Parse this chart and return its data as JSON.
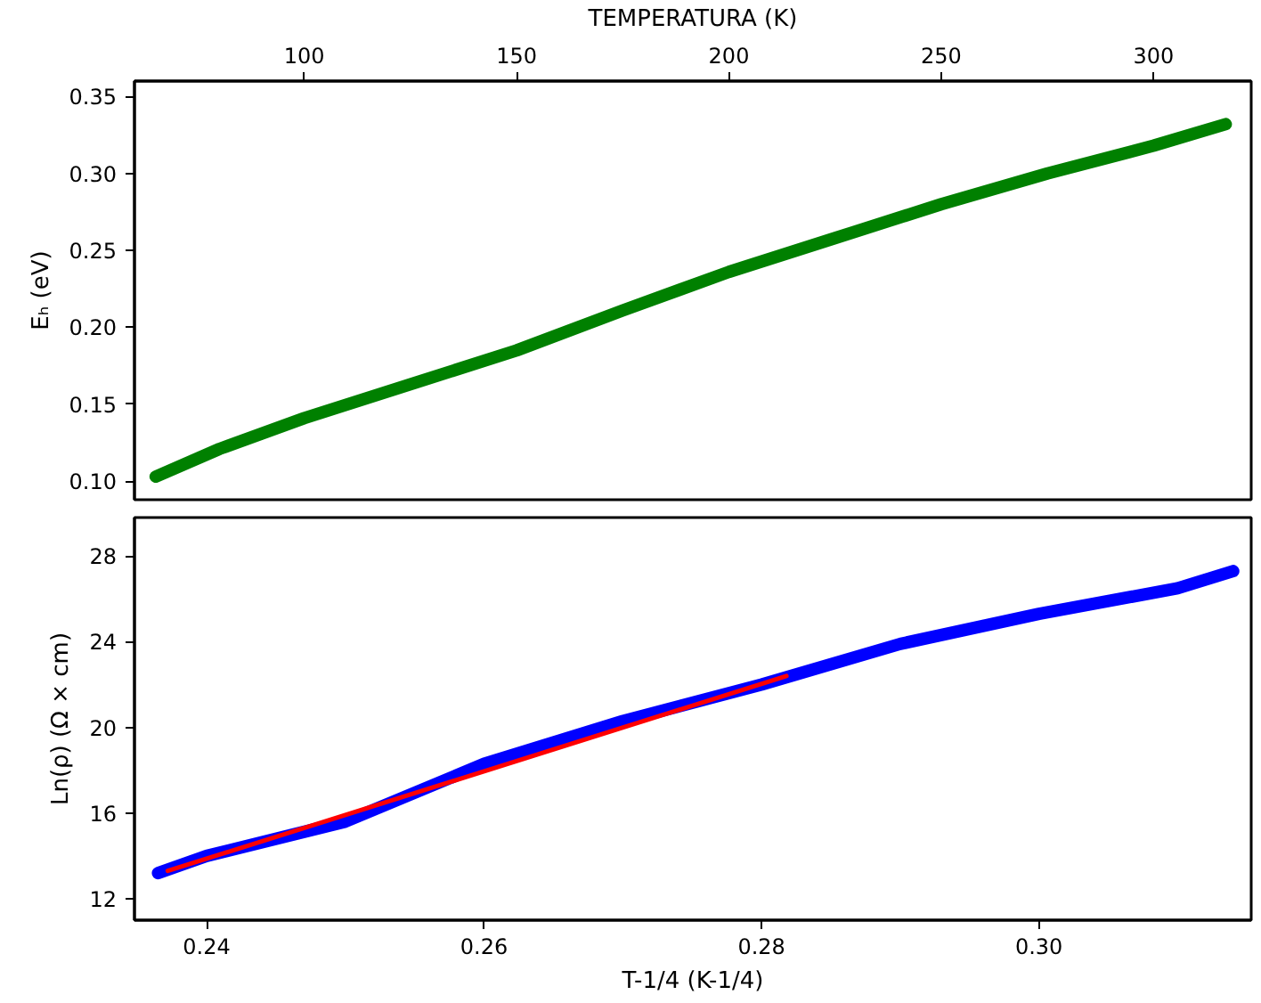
{
  "chart_data": [
    {
      "type": "line",
      "ylabel": "Eₕ (eV)",
      "xlabel": "TEMPERATURA (K)",
      "xlim": [
        60,
        323
      ],
      "xticks": [
        100,
        150,
        200,
        250,
        300
      ],
      "ylim": [
        0.088,
        0.36
      ],
      "yticks": [
        {
          "value": 0.1,
          "label": "0.10"
        },
        {
          "value": 0.15,
          "label": "0.15"
        },
        {
          "value": 0.2,
          "label": "0.20"
        },
        {
          "value": 0.25,
          "label": "0.25"
        },
        {
          "value": 0.3,
          "label": "0.30"
        },
        {
          "value": 0.35,
          "label": "0.35"
        }
      ],
      "grid": false,
      "series": [
        {
          "color": "#008000",
          "x": [
            65,
            80,
            100,
            125,
            150,
            175,
            200,
            225,
            250,
            275,
            300,
            317
          ],
          "values": [
            0.103,
            0.121,
            0.141,
            0.163,
            0.185,
            0.211,
            0.236,
            0.258,
            0.28,
            0.3,
            0.318,
            0.332
          ]
        }
      ]
    },
    {
      "type": "line",
      "xlabel": "T-1/4 (K-1/4)",
      "ylabel": "Ln(ρ) (Ω × cm)",
      "xlim": [
        0.2348,
        0.3153
      ],
      "xticks": [
        {
          "value": 0.24,
          "label": "0.24"
        },
        {
          "value": 0.26,
          "label": "0.26"
        },
        {
          "value": 0.28,
          "label": "0.28"
        },
        {
          "value": 0.3,
          "label": "0.30"
        }
      ],
      "ylim": [
        11,
        29.8
      ],
      "yticks": [
        12,
        16,
        20,
        24,
        28
      ],
      "grid": false,
      "series": [
        {
          "color": "#0000ff",
          "x": [
            0.2365,
            0.24,
            0.25,
            0.26,
            0.27,
            0.28,
            0.29,
            0.3,
            0.31,
            0.314
          ],
          "values": [
            13.2,
            14.0,
            15.6,
            18.3,
            20.3,
            22.0,
            23.9,
            25.3,
            26.5,
            27.3
          ]
        },
        {
          "color": "#ff0000",
          "x": [
            0.2372,
            0.2818
          ],
          "values": [
            13.3,
            22.4
          ]
        }
      ]
    }
  ]
}
